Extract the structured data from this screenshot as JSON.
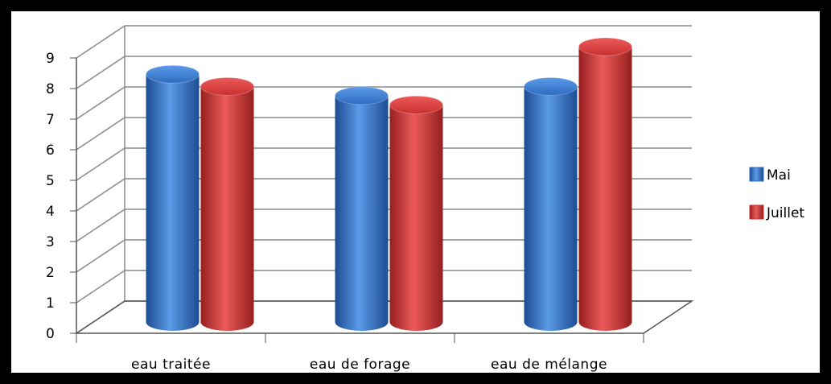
{
  "chart_data": {
    "type": "bar",
    "categories": [
      "eau traitée",
      "eau de forage",
      "eau de mélange"
    ],
    "series": [
      {
        "name": "Mai",
        "values": [
          8.1,
          7.4,
          7.7
        ],
        "color": "#2f6bc0"
      },
      {
        "name": "Juillet",
        "values": [
          7.7,
          7.1,
          9.0
        ],
        "color": "#c93030"
      }
    ],
    "ylim": [
      0,
      9
    ],
    "yticks": [
      "0",
      "1",
      "2",
      "3",
      "4",
      "5",
      "6",
      "7",
      "8",
      "9"
    ],
    "grid": true,
    "legend_position": "right",
    "style": "3d-cylinder"
  }
}
